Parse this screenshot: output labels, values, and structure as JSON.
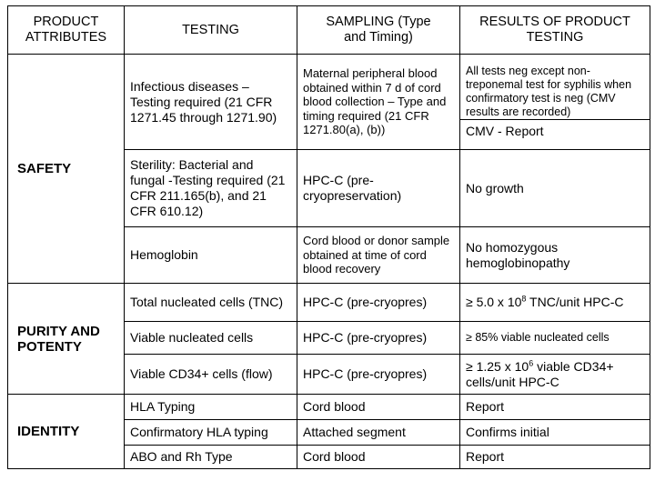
{
  "headers": {
    "attributes": "PRODUCT ATTRIBUTES",
    "testing": "TESTING",
    "sampling": "SAMPLING (Type and Timing)",
    "results": "RESULTS OF PRODUCT TESTING"
  },
  "categories": {
    "safety": "SAFETY",
    "purity": "PURITY AND POTENTY",
    "identity": "IDENTITY"
  },
  "rows": {
    "infectious": {
      "testing": "Infectious diseases – Testing required (21 CFR 1271.45 through 1271.90)",
      "sampling": "Maternal peripheral blood obtained within 7 d of cord blood collection – Type and timing required (21 CFR 1271.80(a), (b))",
      "result_top": "All tests neg except non-treponemal test for syphilis when confirmatory test is neg (CMV results are recorded)",
      "result_bottom": "CMV - Report"
    },
    "sterility": {
      "testing": "Sterility: Bacterial and fungal -Testing required (21 CFR 211.165(b), and 21 CFR 610.12)",
      "sampling": "HPC-C (pre-cryopreservation)",
      "result": "No growth"
    },
    "hemoglobin": {
      "testing": "Hemoglobin",
      "sampling": "Cord blood or donor sample obtained at time of cord blood recovery",
      "result": "No homozygous hemoglobinopathy"
    },
    "tnc": {
      "testing": "Total nucleated cells (TNC)",
      "sampling": "HPC-C (pre-cryopres)",
      "result_prefix": "≥ 5.0 x 10",
      "result_sup": "8",
      "result_suffix": " TNC/unit HPC-C"
    },
    "viable": {
      "testing": "Viable nucleated cells",
      "sampling": "HPC-C (pre-cryopres)",
      "result": "≥ 85% viable nucleated cells"
    },
    "cd34": {
      "testing": "Viable CD34+ cells (flow)",
      "sampling": "HPC-C (pre-cryopres)",
      "result_prefix": "≥ 1.25 x 10",
      "result_sup": "6",
      "result_suffix": " viable CD34+ cells/unit HPC-C"
    },
    "hla": {
      "testing": "HLA Typing",
      "sampling": "Cord blood",
      "result": "Report"
    },
    "conf_hla": {
      "testing": "Confirmatory HLA typing",
      "sampling": "Attached segment",
      "result": "Confirms initial"
    },
    "abo": {
      "testing": "ABO and Rh Type",
      "sampling": "Cord blood",
      "result": "Report"
    }
  }
}
